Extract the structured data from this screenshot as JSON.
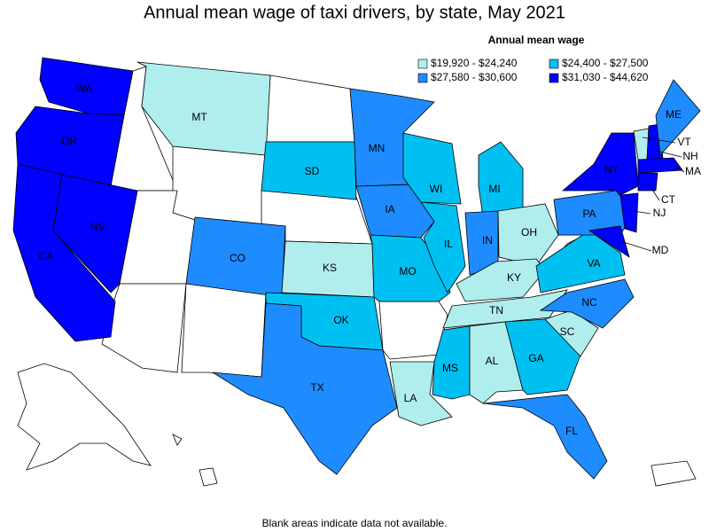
{
  "title": "Annual mean wage of taxi drivers, by state, May 2021",
  "legend": {
    "title": "Annual mean wage",
    "items": [
      {
        "label": "$19,920 - $24,240",
        "color": "#b0eeee"
      },
      {
        "label": "$24,400 - $27,500",
        "color": "#00c0f2"
      },
      {
        "label": "$27,580 - $30,600",
        "color": "#1e8cff"
      },
      {
        "label": "$31,030 - $44,620",
        "color": "#0000ff"
      }
    ]
  },
  "states": [
    {
      "label": "WA",
      "class": 3
    },
    {
      "label": "OR",
      "class": 3
    },
    {
      "label": "CA",
      "class": 3
    },
    {
      "label": "NV",
      "class": 3
    },
    {
      "label": "MT",
      "class": 0
    },
    {
      "label": "CO",
      "class": 2
    },
    {
      "label": "SD",
      "class": 1
    },
    {
      "label": "KS",
      "class": 0
    },
    {
      "label": "OK",
      "class": 1
    },
    {
      "label": "TX",
      "class": 2
    },
    {
      "label": "MN",
      "class": 2
    },
    {
      "label": "IA",
      "class": 2
    },
    {
      "label": "MO",
      "class": 1
    },
    {
      "label": "LA",
      "class": 0
    },
    {
      "label": "WI",
      "class": 1
    },
    {
      "label": "IL",
      "class": 1
    },
    {
      "label": "MI",
      "class": 1
    },
    {
      "label": "IN",
      "class": 2
    },
    {
      "label": "OH",
      "class": 0
    },
    {
      "label": "KY",
      "class": 0
    },
    {
      "label": "TN",
      "class": 0
    },
    {
      "label": "MS",
      "class": 1
    },
    {
      "label": "AL",
      "class": 0
    },
    {
      "label": "GA",
      "class": 1
    },
    {
      "label": "FL",
      "class": 2
    },
    {
      "label": "SC",
      "class": 0
    },
    {
      "label": "NC",
      "class": 2
    },
    {
      "label": "VA",
      "class": 1
    },
    {
      "label": "PA",
      "class": 2
    },
    {
      "label": "NY",
      "class": 3
    },
    {
      "label": "VT",
      "class": 0
    },
    {
      "label": "NH",
      "class": 3
    },
    {
      "label": "ME",
      "class": 2
    },
    {
      "label": "MA",
      "class": 3
    },
    {
      "label": "CT",
      "class": 3
    },
    {
      "label": "NJ",
      "class": 3
    },
    {
      "label": "MD",
      "class": 3
    }
  ],
  "footnote": "Blank areas indicate data not available."
}
